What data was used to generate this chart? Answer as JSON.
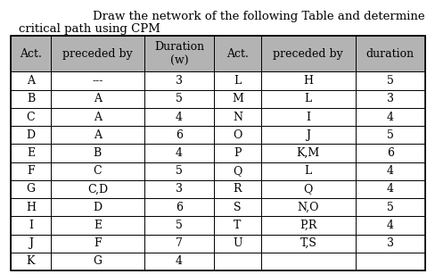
{
  "title_line1": "Draw the network of the following Table and determine",
  "title_line2": "critical path using CPM",
  "header_left": [
    "Act.",
    "preceded by",
    "Duration\n(w)"
  ],
  "header_right": [
    "Act.",
    "preceded by",
    "duration"
  ],
  "rows_left": [
    [
      "A",
      "---",
      "3"
    ],
    [
      "B",
      "A",
      "5"
    ],
    [
      "C",
      "A",
      "4"
    ],
    [
      "D",
      "A",
      "6"
    ],
    [
      "E",
      "B",
      "4"
    ],
    [
      "F",
      "C",
      "5"
    ],
    [
      "G",
      "C,D",
      "3"
    ],
    [
      "H",
      "D",
      "6"
    ],
    [
      "I",
      "E",
      "5"
    ],
    [
      "J",
      "F",
      "7"
    ],
    [
      "K",
      "G",
      "4"
    ]
  ],
  "rows_right": [
    [
      "L",
      "H",
      "5"
    ],
    [
      "M",
      "L",
      "3"
    ],
    [
      "N",
      "I",
      "4"
    ],
    [
      "O",
      "J",
      "5"
    ],
    [
      "P",
      "K,M",
      "6"
    ],
    [
      "Q",
      "L",
      "4"
    ],
    [
      "R",
      "Q",
      "4"
    ],
    [
      "S",
      "N,O",
      "5"
    ],
    [
      "T",
      "P,R",
      "4"
    ],
    [
      "U",
      "T,S",
      "3"
    ],
    [
      "",
      "",
      ""
    ]
  ],
  "header_bg": "#b3b3b3",
  "table_bg": "#ffffff",
  "border_color": "#000000",
  "text_color": "#000000",
  "title_fontsize": 9.5,
  "cell_fontsize": 9,
  "header_fontsize": 9
}
